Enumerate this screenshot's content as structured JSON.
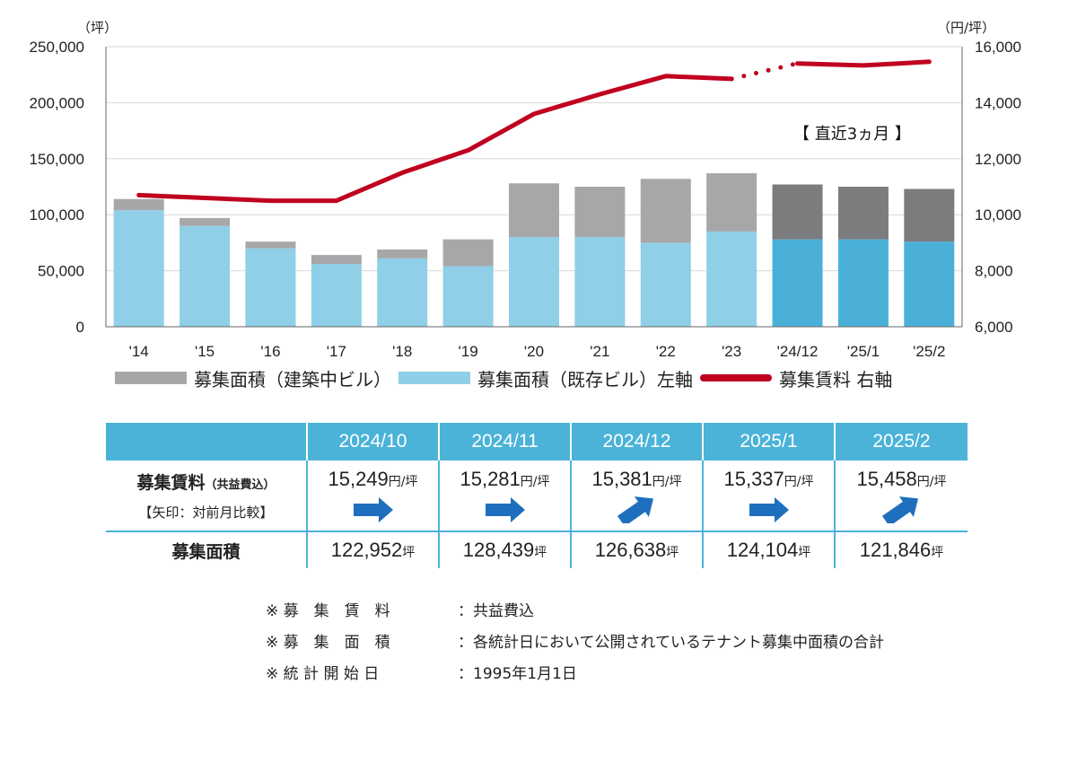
{
  "chart_data": {
    "type": "bar+line",
    "categories": [
      "'14",
      "'15",
      "'16",
      "'17",
      "'18",
      "'19",
      "'20",
      "'21",
      "'22",
      "'23",
      "'24/12",
      "'25/1",
      "'25/2"
    ],
    "series": [
      {
        "name": "募集面積（既存ビル）左軸",
        "axis": "left",
        "type": "stacked-bar",
        "values": [
          104000,
          90000,
          70000,
          56000,
          61000,
          54000,
          80000,
          80000,
          75000,
          85000,
          78000,
          78000,
          76000
        ]
      },
      {
        "name": "募集面積（建築中ビル）",
        "axis": "left",
        "type": "stacked-bar",
        "values": [
          10000,
          7000,
          6000,
          8000,
          8000,
          24000,
          48000,
          45000,
          57000,
          52000,
          49000,
          47000,
          47000
        ]
      },
      {
        "name": "募集賃料 右軸",
        "axis": "right",
        "type": "line",
        "values": [
          10700,
          10600,
          10500,
          10500,
          11500,
          12300,
          13600,
          14300,
          14950,
          14850,
          15400,
          15330,
          15460
        ]
      }
    ],
    "left_axis": {
      "unit": "（坪）",
      "range": [
        0,
        250000
      ],
      "ticks": [
        "0",
        "50,000",
        "100,000",
        "150,000",
        "200,000",
        "250,000"
      ]
    },
    "right_axis": {
      "unit": "（円/坪）",
      "range": [
        6000,
        16000
      ],
      "ticks": [
        "6,000",
        "8,000",
        "10,000",
        "12,000",
        "14,000",
        "16,000"
      ]
    },
    "annotation": "【 直近3ヵ月 】",
    "colors": {
      "existing": "#8fcfe7",
      "existing_recent": "#4bb0d8",
      "construction": "#a7a7aa",
      "construction_recent": "#7c7b7e",
      "rent_line": "#c0001f",
      "grid": "#d9d9d9"
    }
  },
  "legend": {
    "construction": "募集面積（建築中ビル）",
    "existing": "募集面積（既存ビル）左軸",
    "rent": "募集賃料 右軸"
  },
  "table": {
    "months": [
      "2024/10",
      "2024/11",
      "2024/12",
      "2025/1",
      "2025/2"
    ],
    "rent_row_title": "募集賃料",
    "rent_row_sub": "（共益費込）",
    "rent_row_note": "【矢印：対前月比較】",
    "rent_unit": "円/坪",
    "rents": [
      "15,249",
      "15,281",
      "15,381",
      "15,337",
      "15,458"
    ],
    "arrows": [
      "right",
      "right",
      "up-right",
      "right",
      "up-right"
    ],
    "area_row_title": "募集面積",
    "area_unit": "坪",
    "areas": [
      "122,952",
      "128,439",
      "126,638",
      "124,104",
      "121,846"
    ]
  },
  "notes": [
    {
      "label": "※ 募　集　賃　料",
      "text": "：共益費込"
    },
    {
      "label": "※ 募　集　面　積",
      "text": "：各統計日において公開されているテナント募集中面積の合計"
    },
    {
      "label": "※ 統 計 開 始 日",
      "text": "：1995年1月1日"
    }
  ]
}
